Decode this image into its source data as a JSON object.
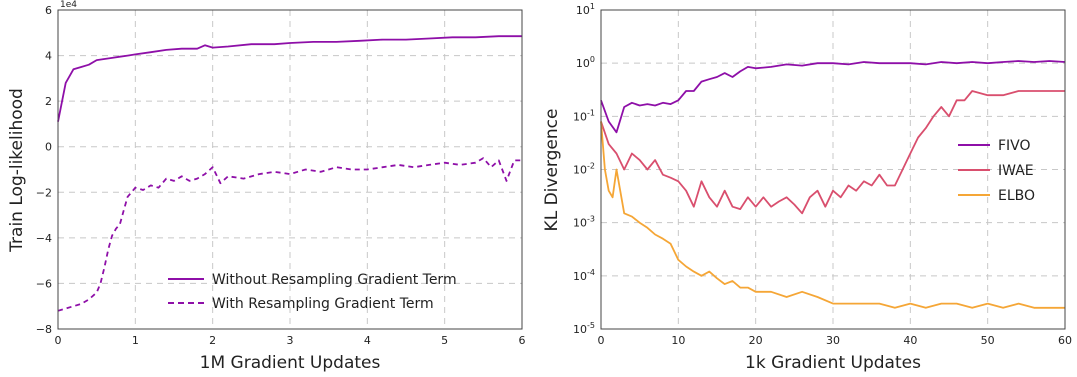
{
  "chart_data": [
    {
      "type": "line",
      "xlabel": "1M Gradient Updates",
      "ylabel": "Train Log-likelihood",
      "y_offset_label": "1e4",
      "xlim": [
        0,
        6
      ],
      "ylim": [
        -8,
        6
      ],
      "xticks": [
        "0",
        "1",
        "2",
        "3",
        "4",
        "5",
        "6"
      ],
      "yticks": [
        "−8",
        "−6",
        "−4",
        "−2",
        "0",
        "2",
        "4",
        "6"
      ],
      "grid": true,
      "legend": "bottom-right",
      "series": [
        {
          "name": "Without Resampling Gradient Term",
          "style": "solid",
          "color": "#8e0fa8",
          "x": [
            0,
            0.1,
            0.2,
            0.3,
            0.4,
            0.5,
            0.6,
            0.7,
            0.8,
            0.9,
            1.0,
            1.2,
            1.4,
            1.6,
            1.8,
            1.9,
            2.0,
            2.2,
            2.5,
            2.8,
            3.0,
            3.3,
            3.6,
            3.9,
            4.2,
            4.5,
            4.8,
            5.1,
            5.4,
            5.7,
            6.0
          ],
          "y": [
            1.1,
            2.8,
            3.4,
            3.5,
            3.6,
            3.8,
            3.85,
            3.9,
            3.95,
            4.0,
            4.05,
            4.15,
            4.25,
            4.3,
            4.3,
            4.45,
            4.35,
            4.4,
            4.5,
            4.5,
            4.55,
            4.6,
            4.6,
            4.65,
            4.7,
            4.7,
            4.75,
            4.8,
            4.8,
            4.85,
            4.85
          ]
        },
        {
          "name": "With Resampling Gradient Term",
          "style": "dashed",
          "color": "#8e0fa8",
          "x": [
            0,
            0.1,
            0.2,
            0.3,
            0.4,
            0.5,
            0.55,
            0.6,
            0.65,
            0.7,
            0.75,
            0.8,
            0.85,
            0.9,
            0.95,
            1.0,
            1.1,
            1.2,
            1.3,
            1.4,
            1.5,
            1.6,
            1.7,
            1.8,
            1.9,
            2.0,
            2.1,
            2.2,
            2.4,
            2.6,
            2.8,
            3.0,
            3.2,
            3.4,
            3.6,
            3.8,
            4.0,
            4.2,
            4.4,
            4.6,
            4.8,
            5.0,
            5.2,
            5.4,
            5.5,
            5.6,
            5.7,
            5.8,
            5.9,
            6.0
          ],
          "y": [
            -7.2,
            -7.1,
            -7.0,
            -6.9,
            -6.7,
            -6.4,
            -6.0,
            -5.3,
            -4.5,
            -3.9,
            -3.6,
            -3.4,
            -2.8,
            -2.2,
            -2.0,
            -1.8,
            -1.9,
            -1.7,
            -1.8,
            -1.4,
            -1.5,
            -1.3,
            -1.5,
            -1.4,
            -1.2,
            -0.9,
            -1.6,
            -1.3,
            -1.4,
            -1.2,
            -1.1,
            -1.2,
            -1.0,
            -1.1,
            -0.9,
            -1.0,
            -1.0,
            -0.9,
            -0.8,
            -0.9,
            -0.8,
            -0.7,
            -0.8,
            -0.7,
            -0.5,
            -0.9,
            -0.6,
            -1.5,
            -0.6,
            -0.6
          ]
        }
      ]
    },
    {
      "type": "line",
      "xlabel": "1k Gradient Updates",
      "ylabel": "KL Divergence",
      "yscale": "log",
      "xlim": [
        0,
        60
      ],
      "ylim": [
        1e-05,
        10
      ],
      "xticks": [
        "0",
        "10",
        "20",
        "30",
        "40",
        "50",
        "60"
      ],
      "yticks": [
        {
          "base": "10",
          "exp": "-5"
        },
        {
          "base": "10",
          "exp": "-4"
        },
        {
          "base": "10",
          "exp": "-3"
        },
        {
          "base": "10",
          "exp": "-2"
        },
        {
          "base": "10",
          "exp": "-1"
        },
        {
          "base": "10",
          "exp": "0"
        },
        {
          "base": "10",
          "exp": "1"
        }
      ],
      "grid": true,
      "legend": "center-right",
      "series": [
        {
          "name": "FIVO",
          "color": "#8e0fa8",
          "x": [
            0,
            1,
            2,
            3,
            4,
            5,
            6,
            7,
            8,
            9,
            10,
            11,
            12,
            13,
            14,
            15,
            16,
            17,
            18,
            19,
            20,
            22,
            24,
            26,
            28,
            30,
            32,
            34,
            36,
            38,
            40,
            42,
            44,
            46,
            48,
            50,
            52,
            54,
            56,
            58,
            60
          ],
          "y": [
            0.2,
            0.08,
            0.05,
            0.15,
            0.18,
            0.16,
            0.17,
            0.16,
            0.18,
            0.17,
            0.2,
            0.3,
            0.3,
            0.45,
            0.5,
            0.55,
            0.65,
            0.55,
            0.7,
            0.85,
            0.8,
            0.85,
            0.95,
            0.9,
            1.0,
            1.0,
            0.95,
            1.05,
            1.0,
            1.0,
            1.0,
            0.95,
            1.05,
            1.0,
            1.05,
            1.0,
            1.05,
            1.1,
            1.05,
            1.1,
            1.05
          ]
        },
        {
          "name": "IWAE",
          "color": "#d94f6e",
          "x": [
            0,
            1,
            2,
            3,
            4,
            5,
            6,
            7,
            8,
            9,
            10,
            11,
            12,
            13,
            14,
            15,
            16,
            17,
            18,
            19,
            20,
            21,
            22,
            23,
            24,
            25,
            26,
            27,
            28,
            29,
            30,
            31,
            32,
            33,
            34,
            35,
            36,
            37,
            38,
            39,
            40,
            41,
            42,
            43,
            44,
            45,
            46,
            47,
            48,
            50,
            52,
            54,
            56,
            58,
            60
          ],
          "y": [
            0.08,
            0.03,
            0.02,
            0.01,
            0.02,
            0.015,
            0.01,
            0.015,
            0.008,
            0.007,
            0.006,
            0.004,
            0.002,
            0.006,
            0.003,
            0.002,
            0.004,
            0.002,
            0.0018,
            0.003,
            0.002,
            0.003,
            0.002,
            0.0025,
            0.003,
            0.0022,
            0.0015,
            0.003,
            0.004,
            0.002,
            0.004,
            0.003,
            0.005,
            0.004,
            0.006,
            0.005,
            0.008,
            0.005,
            0.005,
            0.01,
            0.02,
            0.04,
            0.06,
            0.1,
            0.15,
            0.1,
            0.2,
            0.2,
            0.3,
            0.25,
            0.25,
            0.3,
            0.3,
            0.3,
            0.3
          ]
        },
        {
          "name": "ELBO",
          "color": "#f5a636",
          "x": [
            0,
            0.5,
            1,
            1.5,
            2,
            3,
            4,
            5,
            6,
            7,
            8,
            9,
            10,
            11,
            12,
            13,
            14,
            15,
            16,
            17,
            18,
            19,
            20,
            22,
            24,
            26,
            28,
            30,
            32,
            34,
            36,
            38,
            40,
            42,
            44,
            46,
            48,
            50,
            52,
            54,
            56,
            58,
            60
          ],
          "y": [
            0.08,
            0.01,
            0.004,
            0.003,
            0.01,
            0.0015,
            0.0013,
            0.001,
            0.0008,
            0.0006,
            0.0005,
            0.0004,
            0.0002,
            0.00015,
            0.00012,
            0.0001,
            0.00012,
            9e-05,
            7e-05,
            8e-05,
            6e-05,
            6e-05,
            5e-05,
            5e-05,
            4e-05,
            5e-05,
            4e-05,
            3e-05,
            3e-05,
            3e-05,
            3e-05,
            2.5e-05,
            3e-05,
            2.5e-05,
            3e-05,
            3e-05,
            2.5e-05,
            3e-05,
            2.5e-05,
            3e-05,
            2.5e-05,
            2.5e-05,
            2.5e-05
          ]
        }
      ]
    }
  ]
}
